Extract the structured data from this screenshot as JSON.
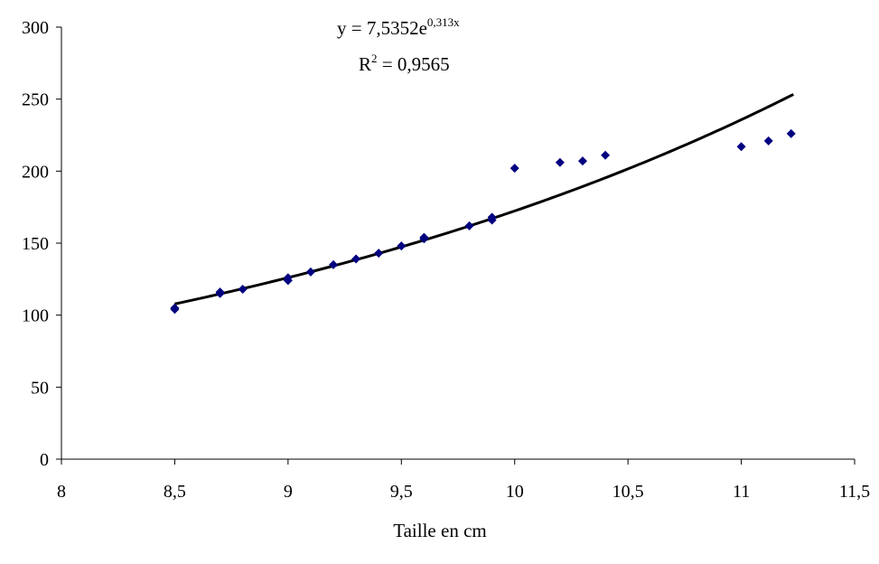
{
  "chart_data": {
    "type": "scatter",
    "xlabel": "Taille en cm",
    "ylabel": "",
    "xlim": [
      8,
      11.5
    ],
    "ylim": [
      0,
      300
    ],
    "xticks": [
      "8",
      "8,5",
      "9",
      "9,5",
      "10",
      "10,5",
      "11",
      "11,5"
    ],
    "yticks": [
      "0",
      "50",
      "100",
      "150",
      "200",
      "250",
      "300"
    ],
    "grid": false,
    "marker_color": "#000080",
    "trendline_color": "#000000",
    "series": [
      {
        "points": [
          [
            8.5,
            104
          ],
          [
            8.5,
            105
          ],
          [
            8.7,
            115
          ],
          [
            8.7,
            116
          ],
          [
            8.8,
            118
          ],
          [
            9.0,
            124
          ],
          [
            9.0,
            126
          ],
          [
            9.1,
            130
          ],
          [
            9.2,
            135
          ],
          [
            9.3,
            139
          ],
          [
            9.4,
            143
          ],
          [
            9.5,
            148
          ],
          [
            9.6,
            153
          ],
          [
            9.6,
            154
          ],
          [
            9.8,
            162
          ],
          [
            9.9,
            166
          ],
          [
            9.9,
            168
          ],
          [
            10.0,
            202
          ],
          [
            10.2,
            206
          ],
          [
            10.3,
            207
          ],
          [
            10.4,
            211
          ],
          [
            11.0,
            217
          ],
          [
            11.12,
            221
          ],
          [
            11.22,
            226
          ]
        ]
      }
    ],
    "trendline": {
      "type": "exponential",
      "a": 7.5352,
      "b": 0.313,
      "x_range": [
        8.5,
        11.23
      ]
    },
    "annotations": {
      "equation_prefix": "y = 7,5352e",
      "equation_exponent": "0,313x",
      "r2_base": "R",
      "r2_exponent": "2",
      "r2_value": " = 0,9565"
    }
  }
}
